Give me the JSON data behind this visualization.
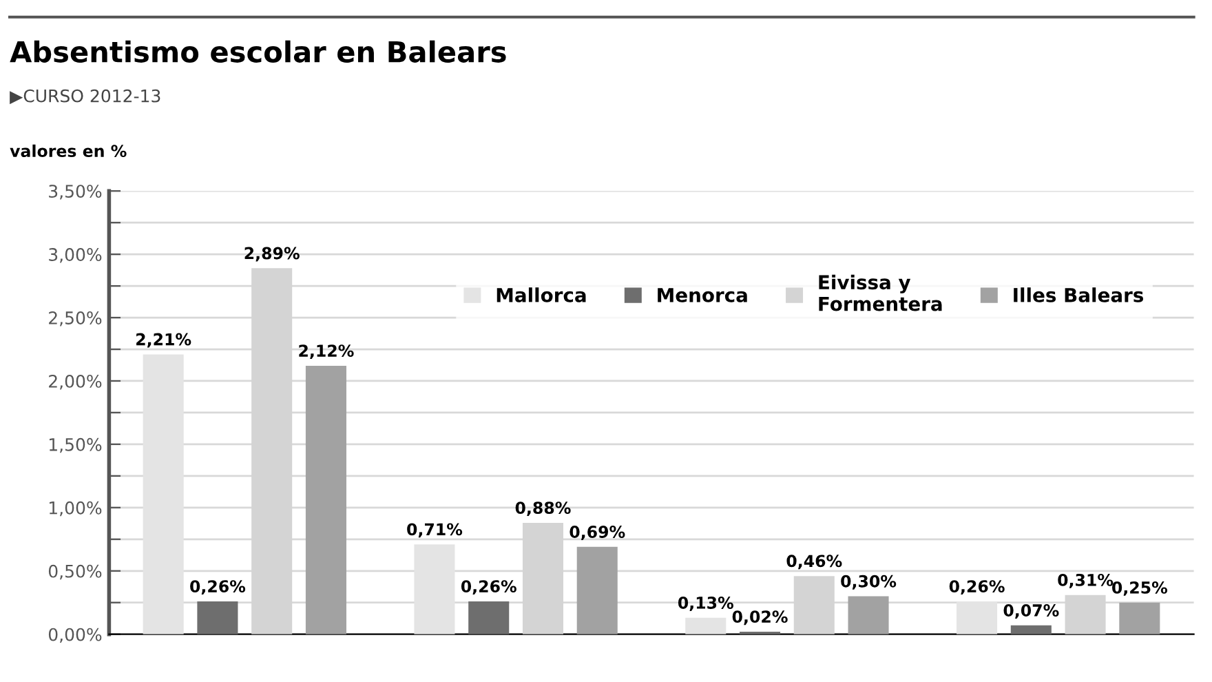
{
  "chart_data": {
    "type": "bar",
    "title": "Absentismo escolar en Balears",
    "subtitle": "▶CURSO 2012-13",
    "ylabel": "valores en %",
    "categories": [
      null,
      null,
      null,
      null
    ],
    "series": [
      {
        "name": "Mallorca",
        "color": "#e4e4e4",
        "values": [
          2.21,
          0.71,
          0.13,
          0.26
        ],
        "value_labels": [
          "2,21%",
          "0,71%",
          "0,13%",
          "0,26%"
        ]
      },
      {
        "name": "Menorca",
        "color": "#6e6e6e",
        "values": [
          0.26,
          0.26,
          0.02,
          0.07
        ],
        "value_labels": [
          "0,26%",
          "0,26%",
          "0,02%",
          "0,07%"
        ]
      },
      {
        "name": "Eivissa y\nFormentera",
        "color": "#d4d4d4",
        "values": [
          2.89,
          0.88,
          0.46,
          0.31
        ],
        "value_labels": [
          "2,89%",
          "0,88%",
          "0,46%",
          "0,31%"
        ]
      },
      {
        "name": "Illes Balears",
        "color": "#a2a2a2",
        "values": [
          2.12,
          0.69,
          0.3,
          0.25
        ],
        "value_labels": [
          "2,12%",
          "0,69%",
          "0,30%",
          "0,25%"
        ]
      }
    ],
    "ylim": [
      0,
      3.5
    ],
    "yticks": [
      {
        "value": 0,
        "label": "0,00%"
      },
      {
        "value": 0.25,
        "label": null
      },
      {
        "value": 0.5,
        "label": "0,50%"
      },
      {
        "value": 0.75,
        "label": null
      },
      {
        "value": 1.0,
        "label": "1,00%"
      },
      {
        "value": 1.25,
        "label": null
      },
      {
        "value": 1.5,
        "label": "1,50%"
      },
      {
        "value": 1.75,
        "label": null
      },
      {
        "value": 2.0,
        "label": "2,00%"
      },
      {
        "value": 2.25,
        "label": null
      },
      {
        "value": 2.5,
        "label": "2,50%"
      },
      {
        "value": 2.75,
        "label": null
      },
      {
        "value": 3.0,
        "label": "3,00%"
      },
      {
        "value": 3.25,
        "label": null
      },
      {
        "value": 3.5,
        "label": "3,50%"
      }
    ],
    "grid": "y",
    "legend": "top right"
  }
}
